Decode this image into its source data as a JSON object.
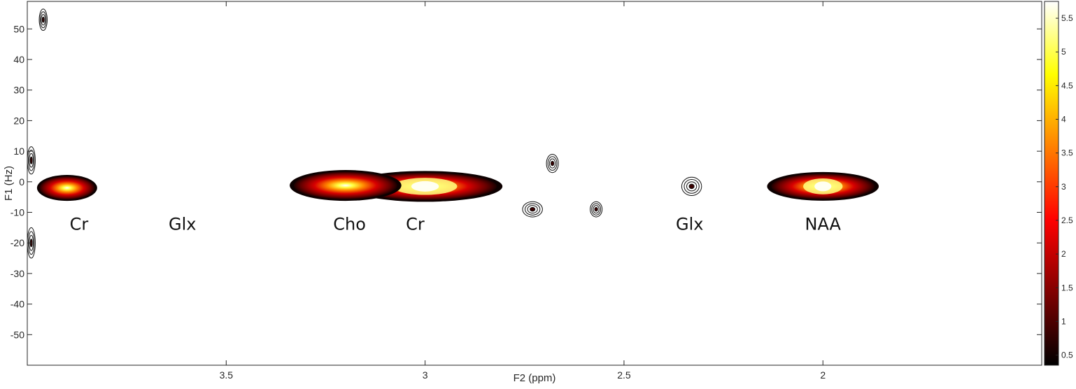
{
  "chart_data": {
    "type": "heatmap",
    "subtype": "2D NMR contour plot (COSY / J-resolved style)",
    "xlabel": "F2 (ppm)",
    "ylabel": "F1 (Hz)",
    "xlim": [
      4.0,
      1.45
    ],
    "ylim": [
      -60,
      59
    ],
    "x_reversed": true,
    "grid": false,
    "x_ticks": [
      3.5,
      3,
      2.5,
      2
    ],
    "x_tick_labels": [
      "3.5",
      "3",
      "2.5",
      "2"
    ],
    "y_ticks": [
      50,
      40,
      30,
      20,
      10,
      0,
      -10,
      -20,
      -30,
      -40,
      -50
    ],
    "y_tick_labels": [
      "50",
      "40",
      "30",
      "20",
      "10",
      "0",
      "-10",
      "-20",
      "-30",
      "-40",
      "-50"
    ],
    "colorbar": {
      "range": [
        0.35,
        5.75
      ],
      "ticks": [
        0.5,
        1,
        1.5,
        2,
        2.5,
        3,
        3.5,
        4,
        4.5,
        5,
        5.5
      ],
      "tick_labels": [
        "0.5",
        "1",
        "1.5",
        "2",
        "2.5",
        "3",
        "3.5",
        "4",
        "4.5",
        "5",
        "5.5"
      ],
      "colormap": "hot",
      "colors": [
        "#000000",
        "#800000",
        "#ff0000",
        "#ff8000",
        "#ffff00",
        "#ffffff"
      ]
    },
    "annotations": [
      {
        "label": "Cr",
        "x": 3.87,
        "y": -12.5
      },
      {
        "label": "Glx",
        "x": 3.61,
        "y": -12.5
      },
      {
        "label": "Cho",
        "x": 3.19,
        "y": -12.5
      },
      {
        "label": "Cr",
        "x": 3.025,
        "y": -12.5
      },
      {
        "label": "Glx",
        "x": 2.335,
        "y": -12.5
      },
      {
        "label": "NAA",
        "x": 2.0,
        "y": -12.5
      }
    ],
    "peaks": [
      {
        "x": 3.0,
        "y": -1.5,
        "intensity": 5.6,
        "wx": 0.36,
        "wy": 4.5
      },
      {
        "x": 3.2,
        "y": -1.2,
        "intensity": 2.2,
        "wx": 0.26,
        "wy": 4.5
      },
      {
        "x": 2.0,
        "y": -1.5,
        "intensity": 4.6,
        "wx": 0.26,
        "wy": 4.2
      },
      {
        "x": 3.9,
        "y": -2.0,
        "intensity": 1.5,
        "wx": 0.14,
        "wy": 3.8
      },
      {
        "x": 2.33,
        "y": -1.5,
        "intensity": 1.0,
        "wx": 0.05,
        "wy": 3.0
      },
      {
        "x": 2.73,
        "y": -9.0,
        "intensity": 0.9,
        "wx": 0.05,
        "wy": 2.5
      },
      {
        "x": 2.57,
        "y": -9.0,
        "intensity": 0.8,
        "wx": 0.03,
        "wy": 2.5
      },
      {
        "x": 2.68,
        "y": 6.0,
        "intensity": 0.7,
        "wx": 0.03,
        "wy": 3.0
      },
      {
        "x": 3.96,
        "y": 53.0,
        "intensity": 0.8,
        "wx": 0.02,
        "wy": 3.5
      },
      {
        "x": 3.99,
        "y": 7.0,
        "intensity": 0.9,
        "wx": 0.02,
        "wy": 4.5
      },
      {
        "x": 3.99,
        "y": -20.0,
        "intensity": 0.7,
        "wx": 0.02,
        "wy": 5.0
      }
    ]
  }
}
